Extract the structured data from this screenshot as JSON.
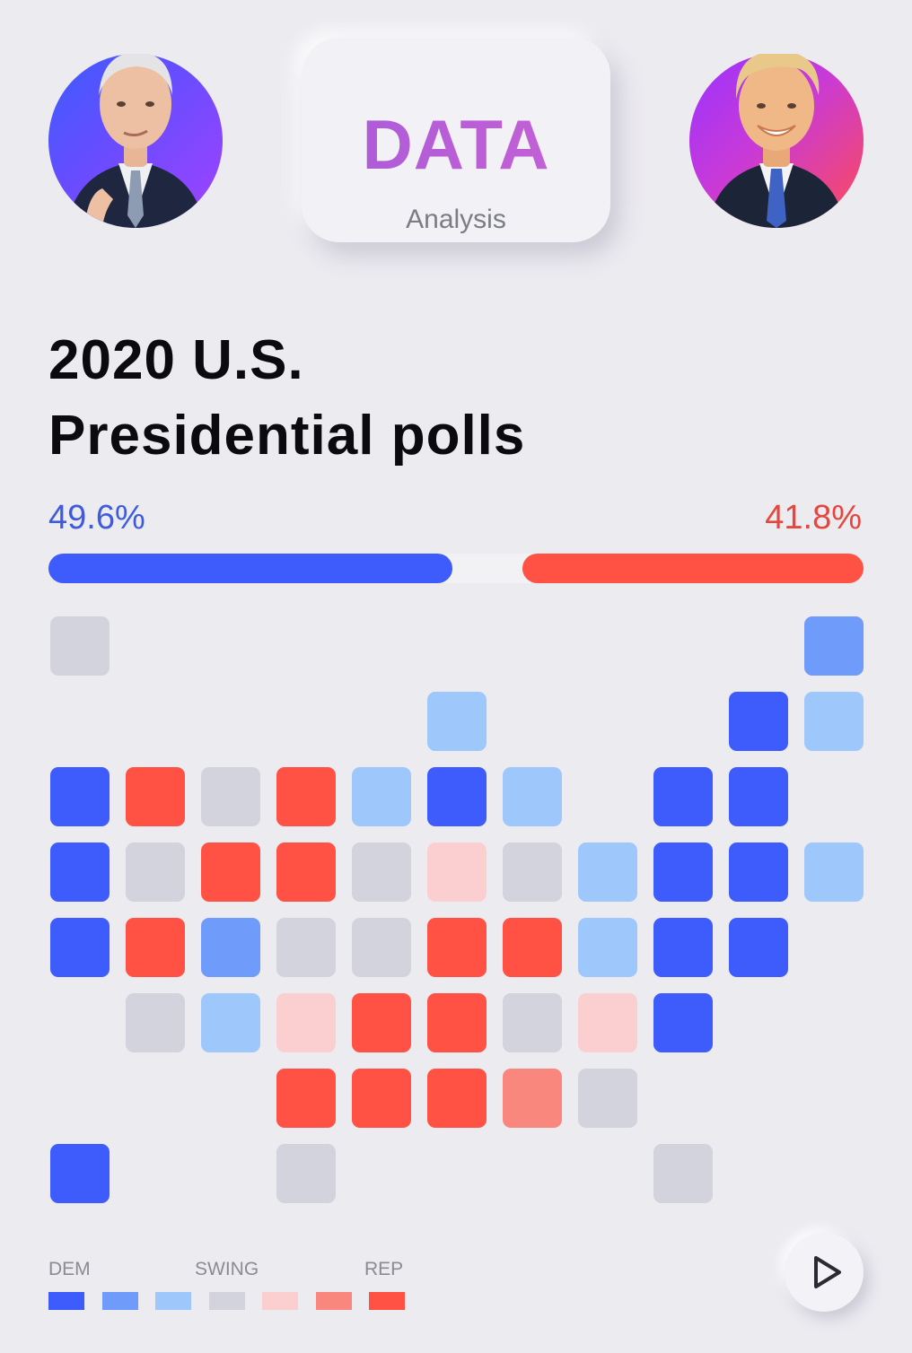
{
  "header": {
    "card_title": "DATA",
    "card_subtitle": "Analysis"
  },
  "title": {
    "line1": "2020 U.S.",
    "line2": "Presidential polls"
  },
  "polls": {
    "dem_label": "49.6%",
    "rep_label": "41.8%",
    "dem_share": 0.496,
    "rep_share": 0.418
  },
  "colors": {
    "dem_strong": "#3d5cfb",
    "dem_lean": "#6f9bfa",
    "dem_tilt": "#9ec8fb",
    "swing": "#d3d3dd",
    "rep_tilt": "#fbcfd0",
    "rep_lean": "#fa877d",
    "rep_strong": "#ff5244"
  },
  "legend": {
    "dem_label": "DEM",
    "swing_label": "SWING",
    "rep_label": "REP",
    "scale": [
      "dem_strong",
      "dem_lean",
      "dem_tilt",
      "swing",
      "rep_tilt",
      "rep_lean",
      "rep_strong"
    ]
  },
  "tile_map": [
    [
      "swing",
      null,
      null,
      null,
      null,
      null,
      null,
      null,
      null,
      null,
      "dem_lean"
    ],
    [
      null,
      null,
      null,
      null,
      null,
      "dem_tilt",
      null,
      null,
      null,
      "dem_strong",
      "dem_tilt"
    ],
    [
      "dem_strong",
      "rep_strong",
      "swing",
      "rep_strong",
      "dem_tilt",
      "dem_strong",
      "dem_tilt",
      null,
      "dem_strong",
      "dem_strong",
      null
    ],
    [
      "dem_strong",
      "swing",
      "rep_strong",
      "rep_strong",
      "swing",
      "rep_tilt",
      "swing",
      "dem_tilt",
      "dem_strong",
      "dem_strong",
      "dem_tilt"
    ],
    [
      "dem_strong",
      "rep_strong",
      "dem_lean",
      "swing",
      "swing",
      "rep_strong",
      "rep_strong",
      "dem_tilt",
      "dem_strong",
      "dem_strong",
      null
    ],
    [
      null,
      "swing",
      "dem_tilt",
      "rep_tilt",
      "rep_strong",
      "rep_strong",
      "swing",
      "rep_tilt",
      "dem_strong",
      null,
      null
    ],
    [
      null,
      null,
      null,
      "rep_strong",
      "rep_strong",
      "rep_strong",
      "rep_lean",
      "swing",
      null,
      null,
      null
    ],
    [
      "dem_strong",
      null,
      null,
      "swing",
      null,
      null,
      null,
      null,
      "swing",
      null,
      null
    ]
  ],
  "controls": {
    "play_icon": "play-icon"
  }
}
